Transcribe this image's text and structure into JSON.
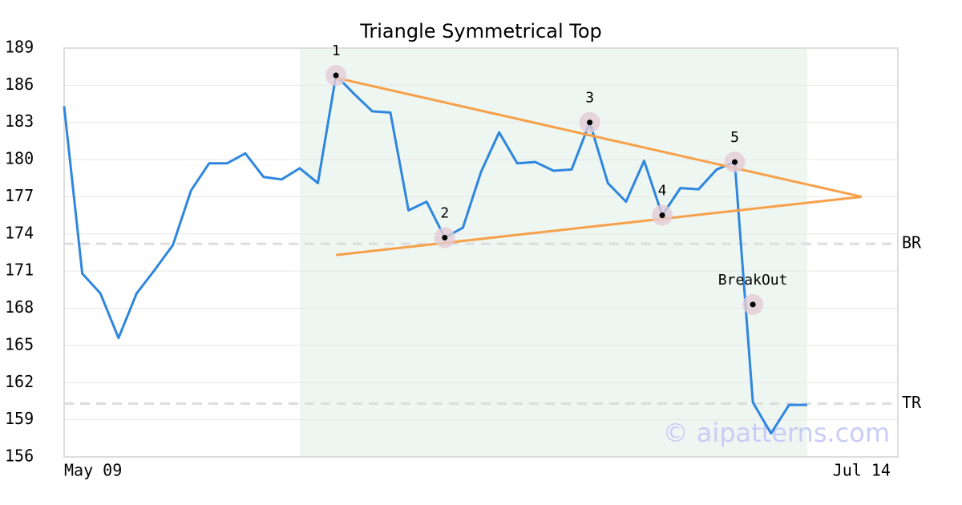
{
  "chart_data": {
    "type": "line",
    "title": "Triangle Symmetrical Top",
    "x": [
      0,
      1,
      2,
      3,
      4,
      5,
      6,
      7,
      8,
      9,
      10,
      11,
      12,
      13,
      14,
      15,
      16,
      17,
      18,
      19,
      20,
      21,
      22,
      23,
      24,
      25,
      26,
      27,
      28,
      29,
      30,
      31,
      32,
      33,
      34,
      35,
      36,
      37,
      38,
      39,
      40,
      41
    ],
    "series": [
      {
        "color": "#2e86de",
        "values": [
          184.3,
          170.8,
          169.2,
          165.6,
          169.2,
          171.1,
          173.1,
          177.5,
          179.7,
          179.7,
          180.5,
          178.6,
          178.4,
          179.3,
          178.1,
          186.8,
          185.3,
          183.9,
          183.8,
          175.9,
          176.6,
          173.7,
          174.5,
          179.0,
          182.2,
          179.7,
          179.8,
          179.1,
          179.2,
          183.0,
          178.1,
          176.6,
          179.9,
          175.5,
          177.7,
          177.6,
          179.2,
          179.8,
          160.4,
          157.9,
          160.2,
          160.2
        ]
      }
    ],
    "xlim": [
      0,
      46
    ],
    "xticks": [
      {
        "value": 0,
        "label": "May 09"
      },
      {
        "value": 44,
        "label": "Jul 14"
      }
    ],
    "ylim": [
      156,
      189
    ],
    "yticks": [
      156,
      159,
      162,
      165,
      168,
      171,
      174,
      177,
      180,
      183,
      186,
      189
    ],
    "grid": true,
    "highlight_x": [
      13,
      41
    ],
    "highlight_color": "#eef6f2",
    "trendline_color": "#f7a04a",
    "trendlines": [
      {
        "x": [
          15,
          44
        ],
        "values": [
          186.6,
          177.0
        ]
      },
      {
        "x": [
          15,
          44
        ],
        "values": [
          172.3,
          177.0
        ]
      }
    ],
    "points": [
      {
        "label": "1",
        "x": 15,
        "value": 186.8
      },
      {
        "label": "2",
        "x": 21,
        "value": 173.7
      },
      {
        "label": "3",
        "x": 29,
        "value": 183.0
      },
      {
        "label": "4",
        "x": 33,
        "value": 175.5
      },
      {
        "label": "5",
        "x": 37,
        "value": 179.8
      },
      {
        "label": "BreakOut",
        "x": 38,
        "value": 168.3
      }
    ],
    "levels": [
      {
        "label": "BR",
        "value": 173.2
      },
      {
        "label": "TR",
        "value": 160.3
      }
    ],
    "watermark": "© aipatterns.com"
  }
}
